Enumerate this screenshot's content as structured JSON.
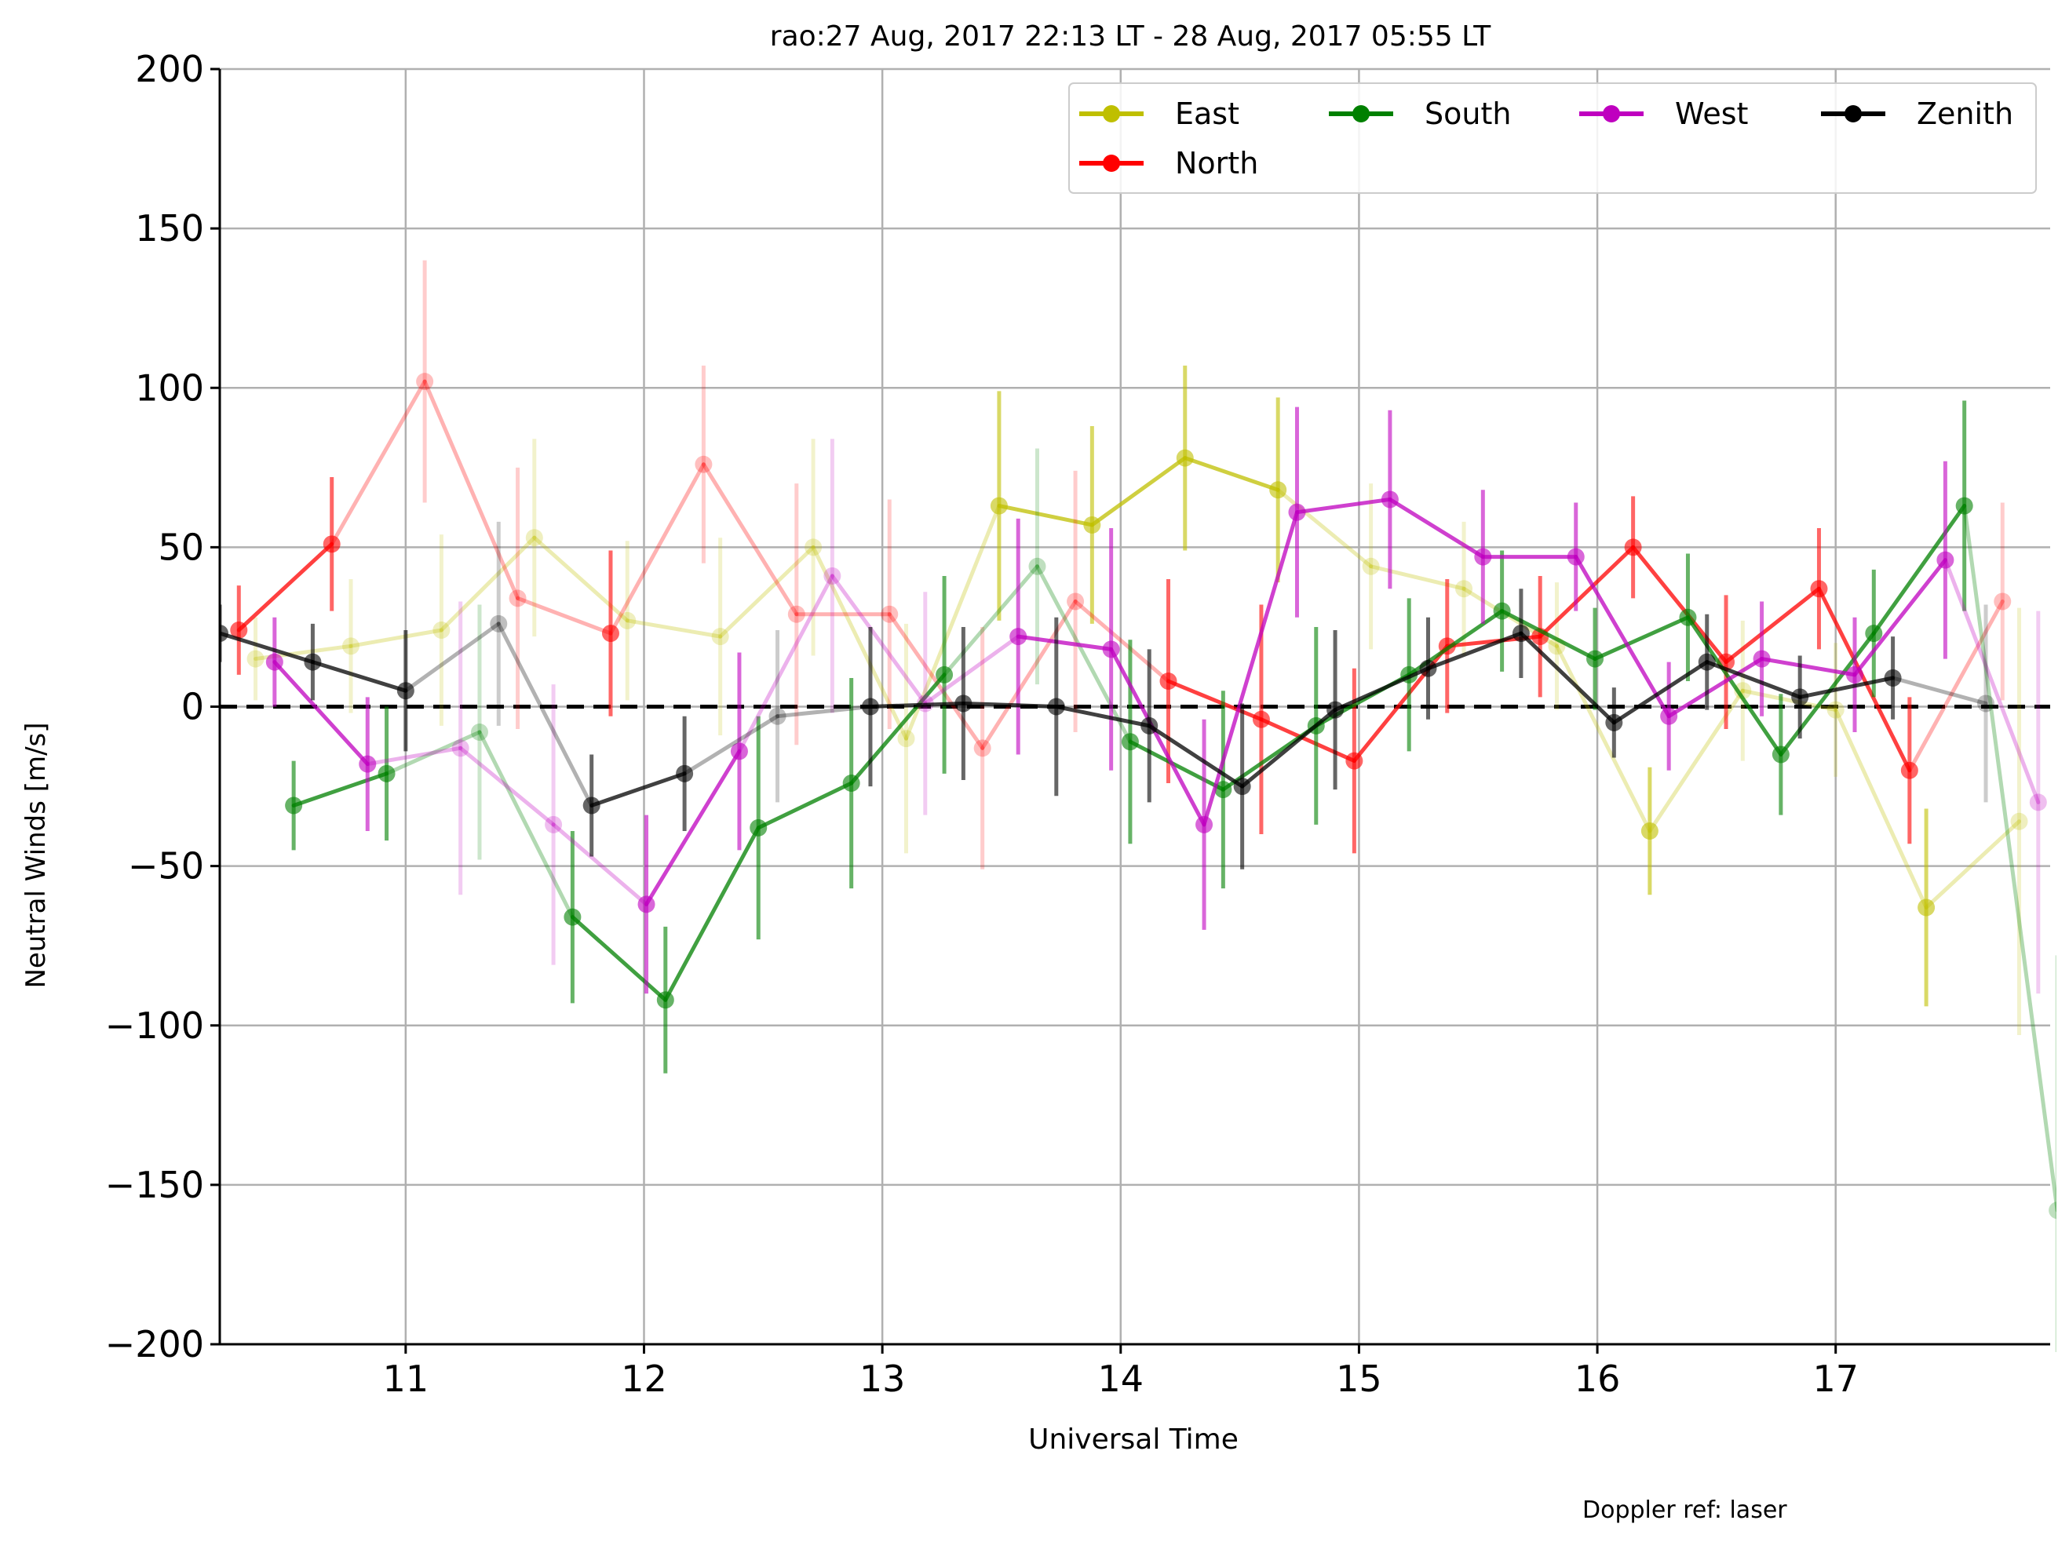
{
  "chart_data": {
    "type": "line",
    "title": "rao:27 Aug, 2017 22:13 LT - 28 Aug, 2017 05:55 LT",
    "xlabel": "Universal Time",
    "ylabel": "Neutral Winds [m/s]",
    "footnote": "Doppler ref: laser",
    "xlim": [
      10.22,
      17.9
    ],
    "ylim": [
      -200,
      200
    ],
    "x_ticks": [
      11,
      12,
      13,
      14,
      15,
      16,
      17
    ],
    "x_tick_labels": [
      "11",
      "12",
      "13",
      "14",
      "15",
      "16",
      "17"
    ],
    "y_ticks": [
      -200,
      -150,
      -100,
      -50,
      0,
      50,
      100,
      150,
      200
    ],
    "y_tick_labels": [
      "−200",
      "−150",
      "−100",
      "−50",
      "0",
      "50",
      "100",
      "150",
      "200"
    ],
    "grid": true,
    "zero_line": true,
    "legend_position": "top-right",
    "series": [
      {
        "name": "East",
        "color": "#bfbf00",
        "points": [
          {
            "x": 10.37,
            "y": 15,
            "err": 13,
            "good": false
          },
          {
            "x": 10.77,
            "y": 19,
            "err": 21,
            "good": false
          },
          {
            "x": 11.15,
            "y": 24,
            "err": 30,
            "good": false
          },
          {
            "x": 11.54,
            "y": 53,
            "err": 31,
            "good": false
          },
          {
            "x": 11.93,
            "y": 27,
            "err": 25,
            "good": false
          },
          {
            "x": 12.32,
            "y": 22,
            "err": 31,
            "good": false
          },
          {
            "x": 12.71,
            "y": 50,
            "err": 34,
            "good": false
          },
          {
            "x": 13.1,
            "y": -10,
            "err": 36,
            "good": false
          },
          {
            "x": 13.49,
            "y": 63,
            "err": 36,
            "good": true
          },
          {
            "x": 13.88,
            "y": 57,
            "err": 31,
            "good": true
          },
          {
            "x": 14.27,
            "y": 78,
            "err": 29,
            "good": true
          },
          {
            "x": 14.66,
            "y": 68,
            "err": 29,
            "good": true
          },
          {
            "x": 15.05,
            "y": 44,
            "err": 26,
            "good": false
          },
          {
            "x": 15.44,
            "y": 37,
            "err": 21,
            "good": false
          },
          {
            "x": 15.83,
            "y": 19,
            "err": 20,
            "good": false
          },
          {
            "x": 16.22,
            "y": -39,
            "err": 20,
            "good": true
          },
          {
            "x": 16.61,
            "y": 5,
            "err": 22,
            "good": false
          },
          {
            "x": 17.0,
            "y": -1,
            "err": 21,
            "good": false
          },
          {
            "x": 17.38,
            "y": -63,
            "err": 31,
            "good": true
          },
          {
            "x": 17.77,
            "y": -36,
            "err": 67,
            "good": false
          }
        ]
      },
      {
        "name": "North",
        "color": "#ff0000",
        "points": [
          {
            "x": 10.3,
            "y": 24,
            "err": 14,
            "good": true
          },
          {
            "x": 10.69,
            "y": 51,
            "err": 21,
            "good": true
          },
          {
            "x": 11.08,
            "y": 102,
            "err": 38,
            "good": false
          },
          {
            "x": 11.47,
            "y": 34,
            "err": 41,
            "good": false
          },
          {
            "x": 11.86,
            "y": 23,
            "err": 26,
            "good": true
          },
          {
            "x": 12.25,
            "y": 76,
            "err": 31,
            "good": false
          },
          {
            "x": 12.64,
            "y": 29,
            "err": 41,
            "good": false
          },
          {
            "x": 13.03,
            "y": 29,
            "err": 36,
            "good": false
          },
          {
            "x": 13.42,
            "y": -13,
            "err": 38,
            "good": false
          },
          {
            "x": 13.81,
            "y": 33,
            "err": 41,
            "good": false
          },
          {
            "x": 14.2,
            "y": 8,
            "err": 32,
            "good": true
          },
          {
            "x": 14.59,
            "y": -4,
            "err": 36,
            "good": true
          },
          {
            "x": 14.98,
            "y": -17,
            "err": 29,
            "good": true
          },
          {
            "x": 15.37,
            "y": 19,
            "err": 21,
            "good": true
          },
          {
            "x": 15.76,
            "y": 22,
            "err": 19,
            "good": true
          },
          {
            "x": 16.15,
            "y": 50,
            "err": 16,
            "good": true
          },
          {
            "x": 16.54,
            "y": 14,
            "err": 21,
            "good": true
          },
          {
            "x": 16.93,
            "y": 37,
            "err": 19,
            "good": true
          },
          {
            "x": 17.31,
            "y": -20,
            "err": 23,
            "good": true
          },
          {
            "x": 17.7,
            "y": 33,
            "err": 31,
            "good": false
          }
        ]
      },
      {
        "name": "South",
        "color": "#008000",
        "points": [
          {
            "x": 10.53,
            "y": -31,
            "err": 14,
            "good": true
          },
          {
            "x": 10.92,
            "y": -21,
            "err": 21,
            "good": true
          },
          {
            "x": 11.31,
            "y": -8,
            "err": 40,
            "good": false
          },
          {
            "x": 11.7,
            "y": -66,
            "err": 27,
            "good": true
          },
          {
            "x": 12.09,
            "y": -92,
            "err": 23,
            "good": true
          },
          {
            "x": 12.48,
            "y": -38,
            "err": 35,
            "good": true
          },
          {
            "x": 12.87,
            "y": -24,
            "err": 33,
            "good": true
          },
          {
            "x": 13.26,
            "y": 10,
            "err": 31,
            "good": true
          },
          {
            "x": 13.65,
            "y": 44,
            "err": 37,
            "good": false
          },
          {
            "x": 14.04,
            "y": -11,
            "err": 32,
            "good": true
          },
          {
            "x": 14.43,
            "y": -26,
            "err": 31,
            "good": true
          },
          {
            "x": 14.82,
            "y": -6,
            "err": 31,
            "good": true
          },
          {
            "x": 15.21,
            "y": 10,
            "err": 24,
            "good": true
          },
          {
            "x": 15.6,
            "y": 30,
            "err": 19,
            "good": true
          },
          {
            "x": 15.99,
            "y": 15,
            "err": 16,
            "good": true
          },
          {
            "x": 16.38,
            "y": 28,
            "err": 20,
            "good": true
          },
          {
            "x": 16.77,
            "y": -15,
            "err": 19,
            "good": true
          },
          {
            "x": 17.16,
            "y": 23,
            "err": 20,
            "good": true
          },
          {
            "x": 17.54,
            "y": 63,
            "err": 33,
            "good": true
          },
          {
            "x": 17.93,
            "y": -158,
            "err": 80,
            "good": false
          }
        ]
      },
      {
        "name": "West",
        "color": "#bf00bf",
        "points": [
          {
            "x": 10.45,
            "y": 14,
            "err": 14,
            "good": true
          },
          {
            "x": 10.84,
            "y": -18,
            "err": 21,
            "good": true
          },
          {
            "x": 11.23,
            "y": -13,
            "err": 46,
            "good": false
          },
          {
            "x": 11.62,
            "y": -37,
            "err": 44,
            "good": false
          },
          {
            "x": 12.01,
            "y": -62,
            "err": 28,
            "good": true
          },
          {
            "x": 12.4,
            "y": -14,
            "err": 31,
            "good": true
          },
          {
            "x": 12.79,
            "y": 41,
            "err": 43,
            "good": false
          },
          {
            "x": 13.18,
            "y": 1,
            "err": 35,
            "good": false
          },
          {
            "x": 13.57,
            "y": 22,
            "err": 37,
            "good": true
          },
          {
            "x": 13.96,
            "y": 18,
            "err": 38,
            "good": true
          },
          {
            "x": 14.35,
            "y": -37,
            "err": 33,
            "good": true
          },
          {
            "x": 14.74,
            "y": 61,
            "err": 33,
            "good": true
          },
          {
            "x": 15.13,
            "y": 65,
            "err": 28,
            "good": true
          },
          {
            "x": 15.52,
            "y": 47,
            "err": 21,
            "good": true
          },
          {
            "x": 15.91,
            "y": 47,
            "err": 17,
            "good": true
          },
          {
            "x": 16.3,
            "y": -3,
            "err": 17,
            "good": true
          },
          {
            "x": 16.69,
            "y": 15,
            "err": 18,
            "good": true
          },
          {
            "x": 17.08,
            "y": 10,
            "err": 18,
            "good": true
          },
          {
            "x": 17.46,
            "y": 46,
            "err": 31,
            "good": true
          },
          {
            "x": 17.85,
            "y": -30,
            "err": 60,
            "good": false
          }
        ]
      },
      {
        "name": "Zenith",
        "color": "#000000",
        "points": [
          {
            "x": 10.22,
            "y": 23,
            "err": 9,
            "good": true
          },
          {
            "x": 10.61,
            "y": 14,
            "err": 12,
            "good": true
          },
          {
            "x": 11.0,
            "y": 5,
            "err": 19,
            "good": true
          },
          {
            "x": 11.39,
            "y": 26,
            "err": 32,
            "good": false
          },
          {
            "x": 11.78,
            "y": -31,
            "err": 16,
            "good": true
          },
          {
            "x": 12.17,
            "y": -21,
            "err": 18,
            "good": true
          },
          {
            "x": 12.56,
            "y": -3,
            "err": 27,
            "good": false
          },
          {
            "x": 12.95,
            "y": 0,
            "err": 25,
            "good": true
          },
          {
            "x": 13.34,
            "y": 1,
            "err": 24,
            "good": true
          },
          {
            "x": 13.73,
            "y": 0,
            "err": 28,
            "good": true
          },
          {
            "x": 14.12,
            "y": -6,
            "err": 24,
            "good": true
          },
          {
            "x": 14.51,
            "y": -25,
            "err": 26,
            "good": true
          },
          {
            "x": 14.9,
            "y": -1,
            "err": 25,
            "good": true
          },
          {
            "x": 15.29,
            "y": 12,
            "err": 16,
            "good": true
          },
          {
            "x": 15.68,
            "y": 23,
            "err": 14,
            "good": true
          },
          {
            "x": 16.07,
            "y": -5,
            "err": 11,
            "good": true
          },
          {
            "x": 16.46,
            "y": 14,
            "err": 15,
            "good": true
          },
          {
            "x": 16.85,
            "y": 3,
            "err": 13,
            "good": true
          },
          {
            "x": 17.24,
            "y": 9,
            "err": 13,
            "good": true
          },
          {
            "x": 17.63,
            "y": 1,
            "err": 31,
            "good": false
          }
        ]
      }
    ]
  }
}
